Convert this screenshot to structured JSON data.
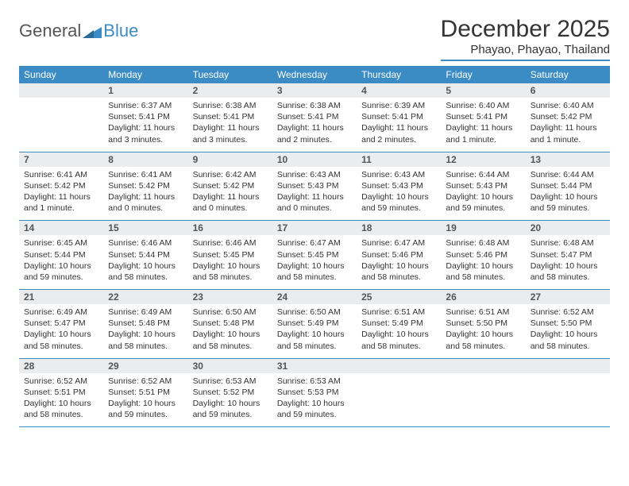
{
  "logo": {
    "textA": "General",
    "textB": "Blue"
  },
  "title": "December 2025",
  "location": "Phayao, Phayao, Thailand",
  "colors": {
    "accent": "#3b8bc4",
    "headerBg": "#3b8bc4",
    "daynumBg": "#ebeced",
    "text": "#333333"
  },
  "weekdays": [
    "Sunday",
    "Monday",
    "Tuesday",
    "Wednesday",
    "Thursday",
    "Friday",
    "Saturday"
  ],
  "weeks": [
    [
      null,
      {
        "n": "1",
        "sr": "Sunrise: 6:37 AM",
        "ss": "Sunset: 5:41 PM",
        "dl": "Daylight: 11 hours and 3 minutes."
      },
      {
        "n": "2",
        "sr": "Sunrise: 6:38 AM",
        "ss": "Sunset: 5:41 PM",
        "dl": "Daylight: 11 hours and 3 minutes."
      },
      {
        "n": "3",
        "sr": "Sunrise: 6:38 AM",
        "ss": "Sunset: 5:41 PM",
        "dl": "Daylight: 11 hours and 2 minutes."
      },
      {
        "n": "4",
        "sr": "Sunrise: 6:39 AM",
        "ss": "Sunset: 5:41 PM",
        "dl": "Daylight: 11 hours and 2 minutes."
      },
      {
        "n": "5",
        "sr": "Sunrise: 6:40 AM",
        "ss": "Sunset: 5:41 PM",
        "dl": "Daylight: 11 hours and 1 minute."
      },
      {
        "n": "6",
        "sr": "Sunrise: 6:40 AM",
        "ss": "Sunset: 5:42 PM",
        "dl": "Daylight: 11 hours and 1 minute."
      }
    ],
    [
      {
        "n": "7",
        "sr": "Sunrise: 6:41 AM",
        "ss": "Sunset: 5:42 PM",
        "dl": "Daylight: 11 hours and 1 minute."
      },
      {
        "n": "8",
        "sr": "Sunrise: 6:41 AM",
        "ss": "Sunset: 5:42 PM",
        "dl": "Daylight: 11 hours and 0 minutes."
      },
      {
        "n": "9",
        "sr": "Sunrise: 6:42 AM",
        "ss": "Sunset: 5:42 PM",
        "dl": "Daylight: 11 hours and 0 minutes."
      },
      {
        "n": "10",
        "sr": "Sunrise: 6:43 AM",
        "ss": "Sunset: 5:43 PM",
        "dl": "Daylight: 11 hours and 0 minutes."
      },
      {
        "n": "11",
        "sr": "Sunrise: 6:43 AM",
        "ss": "Sunset: 5:43 PM",
        "dl": "Daylight: 10 hours and 59 minutes."
      },
      {
        "n": "12",
        "sr": "Sunrise: 6:44 AM",
        "ss": "Sunset: 5:43 PM",
        "dl": "Daylight: 10 hours and 59 minutes."
      },
      {
        "n": "13",
        "sr": "Sunrise: 6:44 AM",
        "ss": "Sunset: 5:44 PM",
        "dl": "Daylight: 10 hours and 59 minutes."
      }
    ],
    [
      {
        "n": "14",
        "sr": "Sunrise: 6:45 AM",
        "ss": "Sunset: 5:44 PM",
        "dl": "Daylight: 10 hours and 59 minutes."
      },
      {
        "n": "15",
        "sr": "Sunrise: 6:46 AM",
        "ss": "Sunset: 5:44 PM",
        "dl": "Daylight: 10 hours and 58 minutes."
      },
      {
        "n": "16",
        "sr": "Sunrise: 6:46 AM",
        "ss": "Sunset: 5:45 PM",
        "dl": "Daylight: 10 hours and 58 minutes."
      },
      {
        "n": "17",
        "sr": "Sunrise: 6:47 AM",
        "ss": "Sunset: 5:45 PM",
        "dl": "Daylight: 10 hours and 58 minutes."
      },
      {
        "n": "18",
        "sr": "Sunrise: 6:47 AM",
        "ss": "Sunset: 5:46 PM",
        "dl": "Daylight: 10 hours and 58 minutes."
      },
      {
        "n": "19",
        "sr": "Sunrise: 6:48 AM",
        "ss": "Sunset: 5:46 PM",
        "dl": "Daylight: 10 hours and 58 minutes."
      },
      {
        "n": "20",
        "sr": "Sunrise: 6:48 AM",
        "ss": "Sunset: 5:47 PM",
        "dl": "Daylight: 10 hours and 58 minutes."
      }
    ],
    [
      {
        "n": "21",
        "sr": "Sunrise: 6:49 AM",
        "ss": "Sunset: 5:47 PM",
        "dl": "Daylight: 10 hours and 58 minutes."
      },
      {
        "n": "22",
        "sr": "Sunrise: 6:49 AM",
        "ss": "Sunset: 5:48 PM",
        "dl": "Daylight: 10 hours and 58 minutes."
      },
      {
        "n": "23",
        "sr": "Sunrise: 6:50 AM",
        "ss": "Sunset: 5:48 PM",
        "dl": "Daylight: 10 hours and 58 minutes."
      },
      {
        "n": "24",
        "sr": "Sunrise: 6:50 AM",
        "ss": "Sunset: 5:49 PM",
        "dl": "Daylight: 10 hours and 58 minutes."
      },
      {
        "n": "25",
        "sr": "Sunrise: 6:51 AM",
        "ss": "Sunset: 5:49 PM",
        "dl": "Daylight: 10 hours and 58 minutes."
      },
      {
        "n": "26",
        "sr": "Sunrise: 6:51 AM",
        "ss": "Sunset: 5:50 PM",
        "dl": "Daylight: 10 hours and 58 minutes."
      },
      {
        "n": "27",
        "sr": "Sunrise: 6:52 AM",
        "ss": "Sunset: 5:50 PM",
        "dl": "Daylight: 10 hours and 58 minutes."
      }
    ],
    [
      {
        "n": "28",
        "sr": "Sunrise: 6:52 AM",
        "ss": "Sunset: 5:51 PM",
        "dl": "Daylight: 10 hours and 58 minutes."
      },
      {
        "n": "29",
        "sr": "Sunrise: 6:52 AM",
        "ss": "Sunset: 5:51 PM",
        "dl": "Daylight: 10 hours and 59 minutes."
      },
      {
        "n": "30",
        "sr": "Sunrise: 6:53 AM",
        "ss": "Sunset: 5:52 PM",
        "dl": "Daylight: 10 hours and 59 minutes."
      },
      {
        "n": "31",
        "sr": "Sunrise: 6:53 AM",
        "ss": "Sunset: 5:53 PM",
        "dl": "Daylight: 10 hours and 59 minutes."
      },
      null,
      null,
      null
    ]
  ]
}
